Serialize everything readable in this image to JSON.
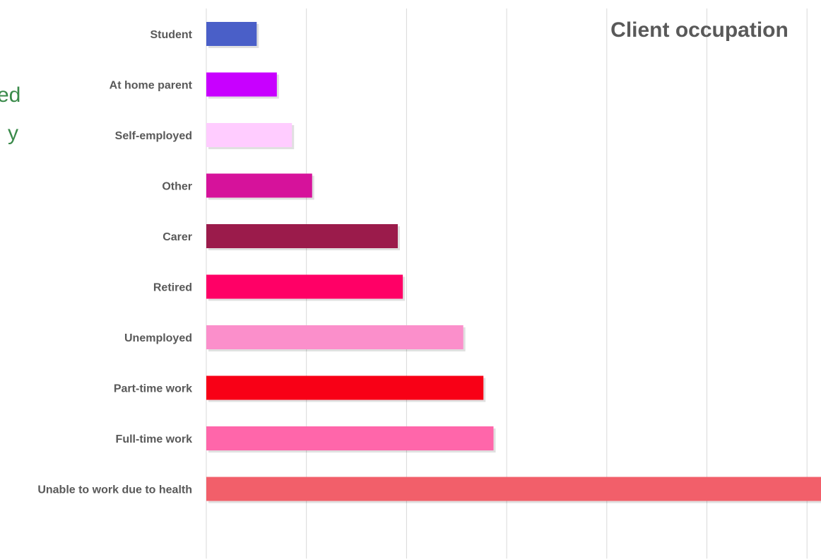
{
  "fragments": {
    "line1": "ed",
    "line2": "y"
  },
  "chart_data": {
    "type": "bar",
    "orientation": "horizontal",
    "title": "Client occupation",
    "xlabel": "",
    "ylabel": "",
    "grid": true,
    "xlim": [
      0,
      61
    ],
    "categories": [
      "Student",
      "At home parent",
      "Self-employed",
      "Other",
      "Carer",
      "Retired",
      "Unemployed",
      "Part-time work",
      "Full-time work",
      "Unable to work due to health"
    ],
    "values": [
      5,
      7,
      8.5,
      10.5,
      19,
      19.5,
      25.5,
      27.5,
      28.5,
      61
    ],
    "colors": [
      "#4a5fc8",
      "#c800ff",
      "#ffccff",
      "#d6129b",
      "#9b1b4b",
      "#ff0066",
      "#fb8fcb",
      "#f80016",
      "#ff66aa",
      "#f25f6a"
    ]
  }
}
